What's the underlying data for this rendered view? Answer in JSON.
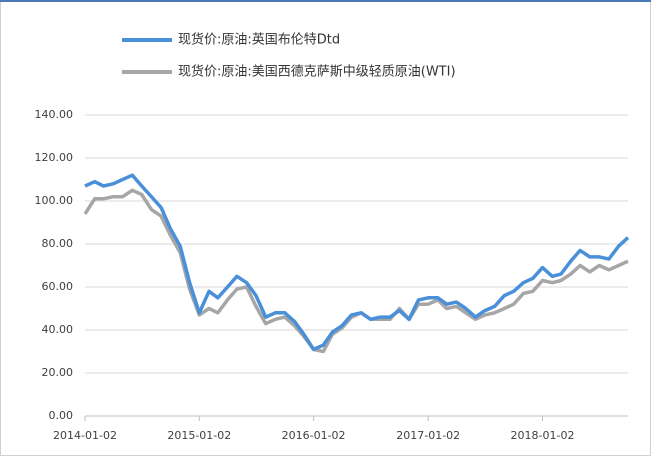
{
  "chart_data": {
    "type": "line",
    "x": [
      "2014-01-02",
      "2014-02-02",
      "2014-03-02",
      "2014-04-02",
      "2014-05-02",
      "2014-06-02",
      "2014-07-02",
      "2014-08-02",
      "2014-09-02",
      "2014-10-02",
      "2014-11-02",
      "2014-12-02",
      "2015-01-02",
      "2015-02-02",
      "2015-03-02",
      "2015-04-02",
      "2015-05-02",
      "2015-06-02",
      "2015-07-02",
      "2015-08-02",
      "2015-09-02",
      "2015-10-02",
      "2015-11-02",
      "2015-12-02",
      "2016-01-02",
      "2016-02-02",
      "2016-03-02",
      "2016-04-02",
      "2016-05-02",
      "2016-06-02",
      "2016-07-02",
      "2016-08-02",
      "2016-09-02",
      "2016-10-02",
      "2016-11-02",
      "2016-12-02",
      "2017-01-02",
      "2017-02-02",
      "2017-03-02",
      "2017-04-02",
      "2017-05-02",
      "2017-06-02",
      "2017-07-02",
      "2017-08-02",
      "2017-09-02",
      "2017-10-02",
      "2017-11-02",
      "2017-12-02",
      "2018-01-02",
      "2018-02-02",
      "2018-03-02",
      "2018-04-02",
      "2018-05-02",
      "2018-06-02",
      "2018-07-02",
      "2018-08-02",
      "2018-09-02",
      "2018-10-02"
    ],
    "series": [
      {
        "name": "现货价:原油:英国布伦特Dtd",
        "color": "#4a90d9",
        "values": [
          107,
          109,
          107,
          108,
          110,
          112,
          107,
          102,
          97,
          87,
          79,
          62,
          48,
          58,
          55,
          60,
          65,
          62,
          56,
          46,
          48,
          48,
          44,
          38,
          31,
          33,
          39,
          42,
          47,
          48,
          45,
          46,
          46,
          49,
          45,
          54,
          55,
          55,
          52,
          53,
          50,
          46,
          49,
          51,
          56,
          58,
          62,
          64,
          69,
          65,
          66,
          72,
          77,
          74,
          74,
          73,
          79,
          83
        ]
      },
      {
        "name": "现货价:原油:美国西德克萨斯中级轻质原油(WTI)",
        "color": "#a6a6a6",
        "values": [
          94,
          101,
          101,
          102,
          102,
          105,
          103,
          96,
          93,
          84,
          76,
          59,
          47,
          50,
          48,
          54,
          59,
          60,
          51,
          43,
          45,
          46,
          42,
          37,
          31,
          30,
          38,
          41,
          46,
          48,
          45,
          45,
          45,
          50,
          45,
          52,
          52,
          54,
          50,
          51,
          48,
          45,
          47,
          48,
          50,
          52,
          57,
          58,
          63,
          62,
          63,
          66,
          70,
          67,
          70,
          68,
          70,
          72
        ]
      }
    ],
    "xlim": [
      "2014-01-02",
      "2018-10-02"
    ],
    "xticks": [
      "2014-01-02",
      "2015-01-02",
      "2016-01-02",
      "2017-01-02",
      "2018-01-02"
    ],
    "ylim": [
      0,
      140
    ],
    "yticks": [
      {
        "value": 0,
        "label": "0.00"
      },
      {
        "value": 20,
        "label": "20.00"
      },
      {
        "value": 40,
        "label": "40.00"
      },
      {
        "value": 60,
        "label": "60.00"
      },
      {
        "value": 80,
        "label": "80.00"
      },
      {
        "value": 100,
        "label": "100.00"
      },
      {
        "value": 120,
        "label": "120.00"
      },
      {
        "value": 140,
        "label": "140.00"
      }
    ],
    "grid": true
  }
}
